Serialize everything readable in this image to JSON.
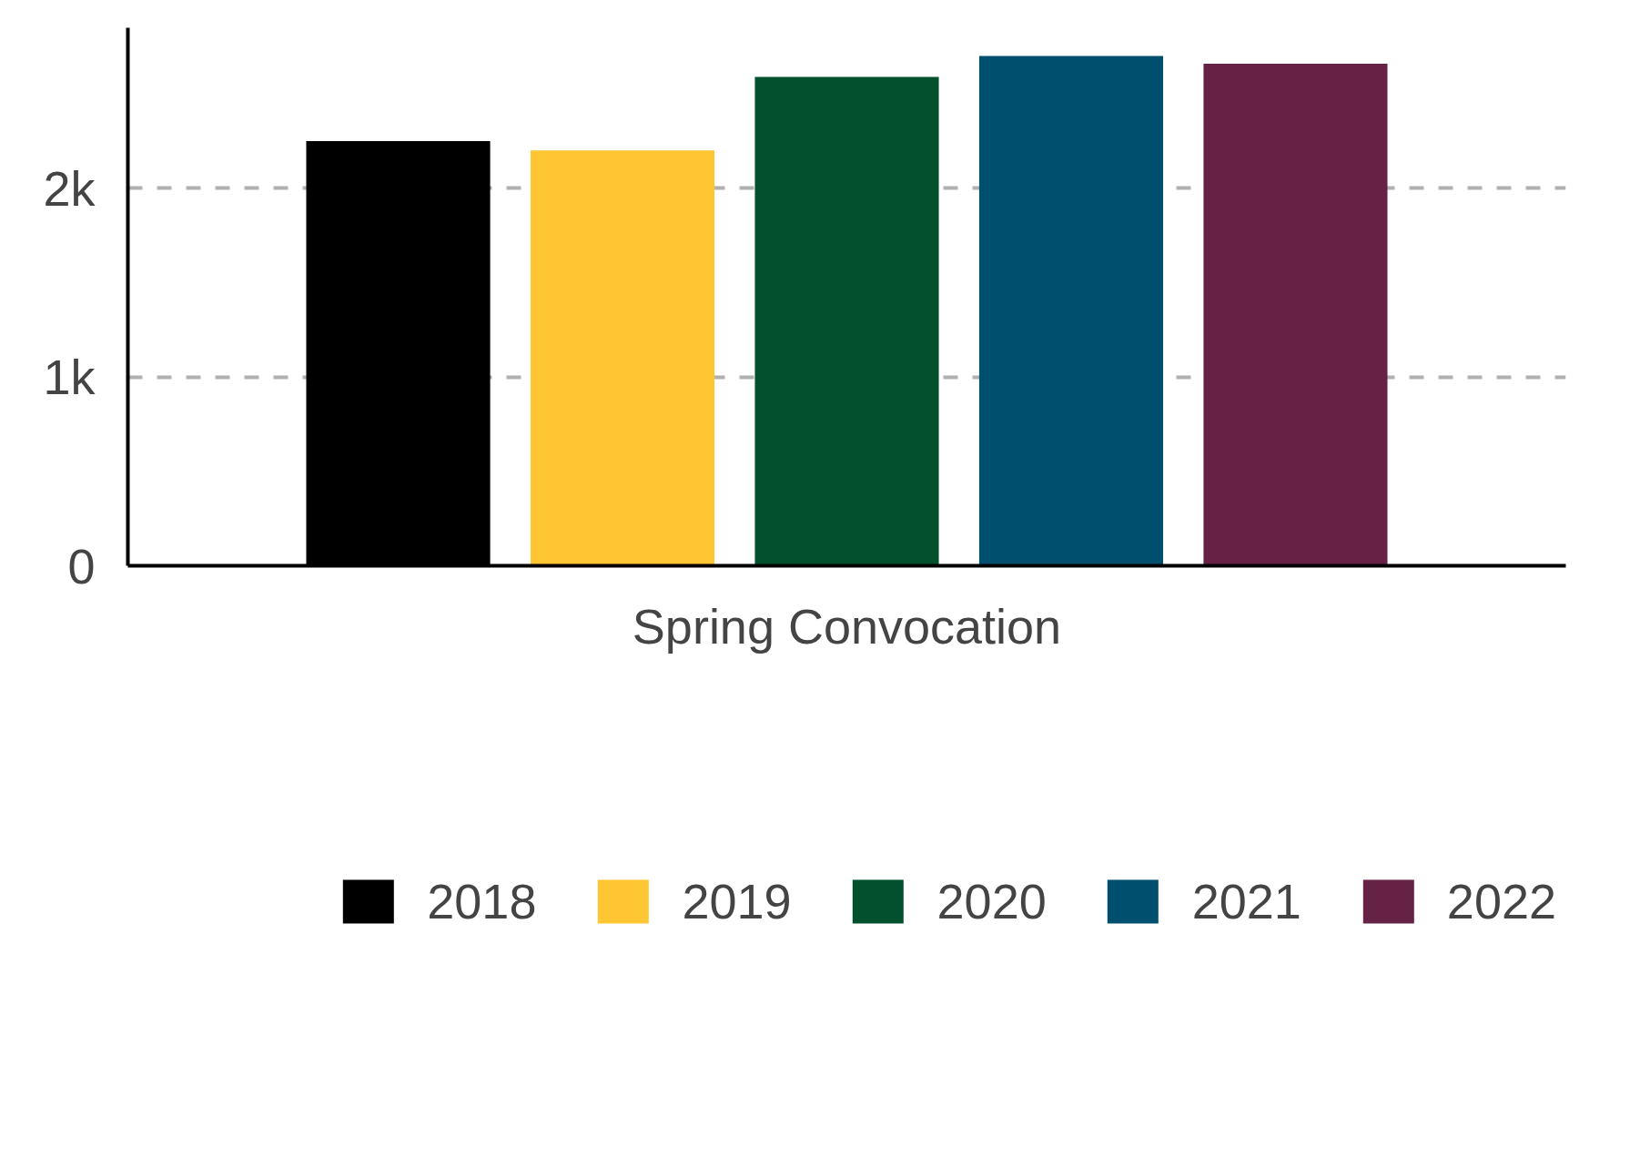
{
  "chart_data": {
    "type": "bar",
    "categories": [
      "Spring Convocation"
    ],
    "series": [
      {
        "name": "2018",
        "color": "#000000",
        "values": [
          2250
        ]
      },
      {
        "name": "2019",
        "color": "#fdc632",
        "values": [
          2200
        ]
      },
      {
        "name": "2020",
        "color": "#03502f",
        "values": [
          2590
        ]
      },
      {
        "name": "2021",
        "color": "#004f6f",
        "values": [
          2700
        ]
      },
      {
        "name": "2022",
        "color": "#662245",
        "values": [
          2660
        ]
      }
    ],
    "ylim": [
      0,
      2850
    ],
    "yticks": [
      0,
      {
        "value": 1000,
        "label": "1k"
      },
      {
        "value": 2000,
        "label": "2k"
      }
    ],
    "grid": "y",
    "legend": "bottom"
  }
}
